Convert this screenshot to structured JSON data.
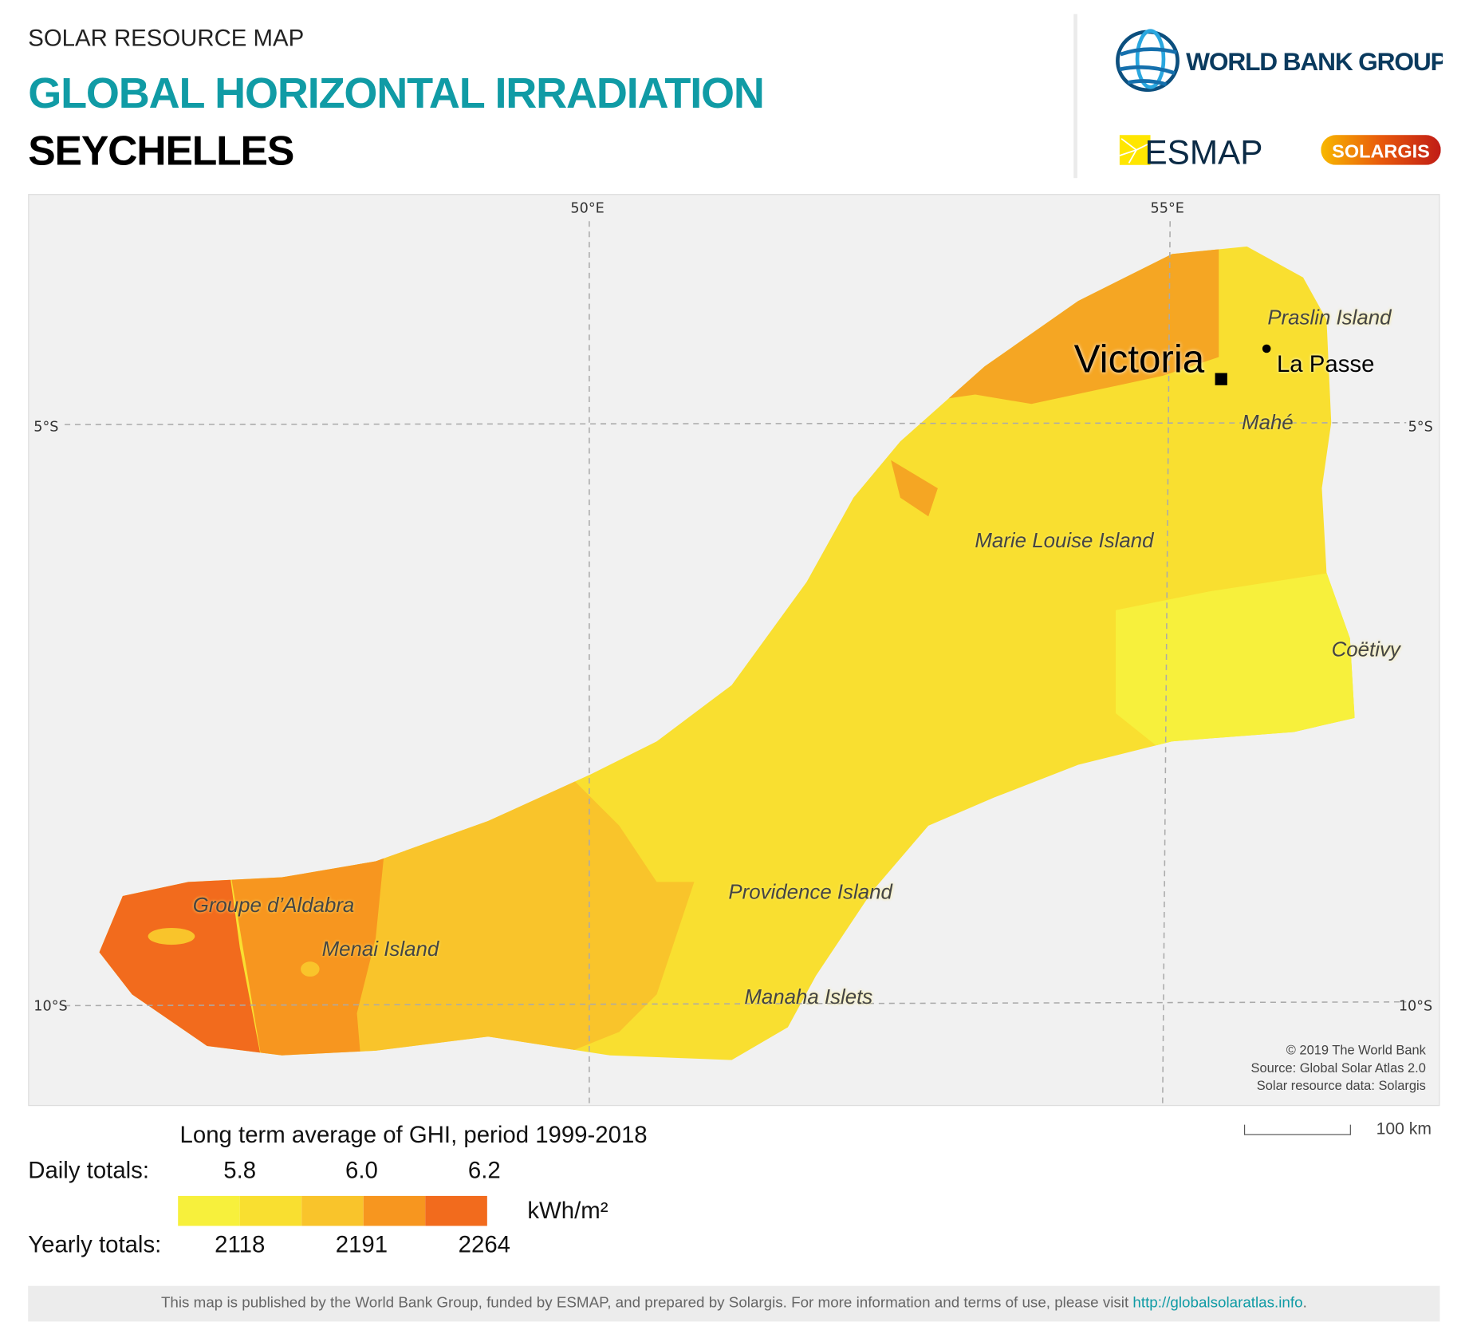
{
  "header": {
    "supertitle": "SOLAR RESOURCE MAP",
    "title": "GLOBAL HORIZONTAL IRRADIATION",
    "country": "SEYCHELLES"
  },
  "logos": {
    "world_bank": "WORLD BANK GROUP",
    "esmap": "ESMAP",
    "solargis": "SOLARGIS"
  },
  "map": {
    "grid": {
      "lon": [
        "50°E",
        "55°E"
      ],
      "lat": [
        "5°S",
        "10°S"
      ]
    },
    "places": [
      {
        "name": "Praslin Island",
        "type": "island"
      },
      {
        "name": "Victoria",
        "type": "capital"
      },
      {
        "name": "La Passe",
        "type": "town"
      },
      {
        "name": "Mahé",
        "type": "island"
      },
      {
        "name": "Marie Louise Island",
        "type": "island"
      },
      {
        "name": "Coëtivy",
        "type": "island"
      },
      {
        "name": "Providence Island",
        "type": "island"
      },
      {
        "name": "Manaha Islets",
        "type": "island"
      },
      {
        "name": "Groupe d’Aldabra",
        "type": "island"
      },
      {
        "name": "Menai Island",
        "type": "island"
      }
    ],
    "attribution": [
      "© 2019 The World Bank",
      "Source: Global Solar Atlas 2.0",
      "Solar resource data: Solargis"
    ],
    "scale_label": "100 km"
  },
  "legend": {
    "title": "Long term average of GHI, period 1999-2018",
    "daily_label": "Daily totals:",
    "daily_values": [
      "5.8",
      "6.0",
      "6.2"
    ],
    "yearly_label": "Yearly totals:",
    "yearly_values": [
      "2118",
      "2191",
      "2264"
    ],
    "unit": "kWh/m²",
    "colors": [
      "#f7f03c",
      "#f9df30",
      "#f9c42b",
      "#f7961f",
      "#f26b1d"
    ]
  },
  "footer": {
    "text": "This map is published by the World Bank Group, funded by ESMAP, and prepared by Solargis. For more information and terms of use, please visit ",
    "link": "http://globalsolaratlas.info",
    "end": "."
  }
}
